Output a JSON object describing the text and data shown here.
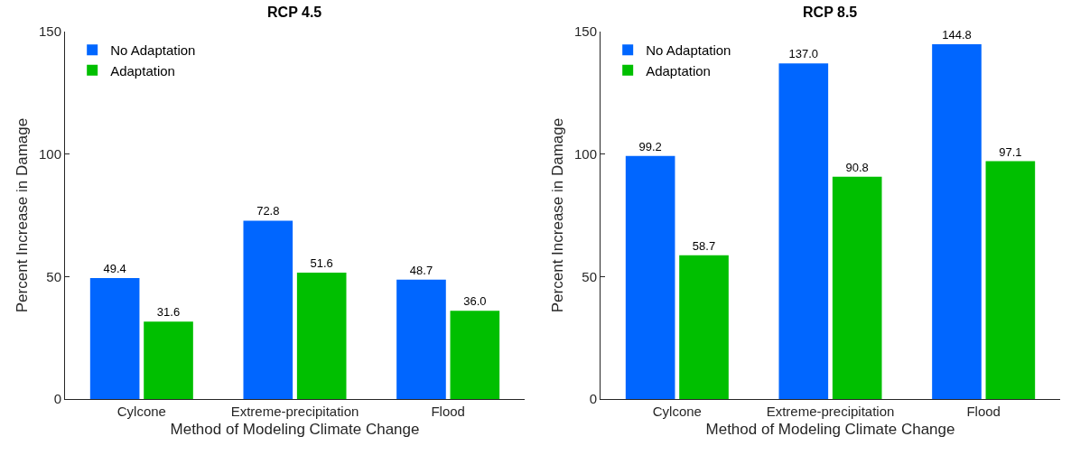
{
  "chart_data": [
    {
      "type": "bar",
      "title": "RCP 4.5",
      "xlabel": "Method of Modeling Climate Change",
      "ylabel": "Percent Increase in Damage",
      "categories": [
        "Cylcone",
        "Extreme-precipitation",
        "Flood"
      ],
      "series": [
        {
          "name": "No Adaptation",
          "color": "#0066ff",
          "values": [
            49.4,
            72.8,
            48.7
          ],
          "value_labels": [
            "49.4",
            "72.8",
            "48.7"
          ]
        },
        {
          "name": "Adaptation",
          "color": "#00bf00",
          "values": [
            31.6,
            51.6,
            36.0
          ],
          "value_labels": [
            "31.6",
            "51.6",
            "36.0"
          ]
        }
      ],
      "ylim": [
        0,
        150
      ],
      "yticks": [
        0,
        50,
        100,
        150
      ],
      "legend": "top left",
      "grid": false
    },
    {
      "type": "bar",
      "title": "RCP 8.5",
      "xlabel": "Method of Modeling Climate Change",
      "ylabel": "Percent Increase in Damage",
      "categories": [
        "Cylcone",
        "Extreme-precipitation",
        "Flood"
      ],
      "series": [
        {
          "name": "No Adaptation",
          "color": "#0066ff",
          "values": [
            99.2,
            137.0,
            144.8
          ],
          "value_labels": [
            "99.2",
            "137.0",
            "144.8"
          ]
        },
        {
          "name": "Adaptation",
          "color": "#00bf00",
          "values": [
            58.7,
            90.8,
            97.1
          ],
          "value_labels": [
            "58.7",
            "90.8",
            "97.1"
          ]
        }
      ],
      "ylim": [
        0,
        150
      ],
      "yticks": [
        0,
        50,
        100,
        150
      ],
      "legend": "top left",
      "grid": false
    }
  ]
}
